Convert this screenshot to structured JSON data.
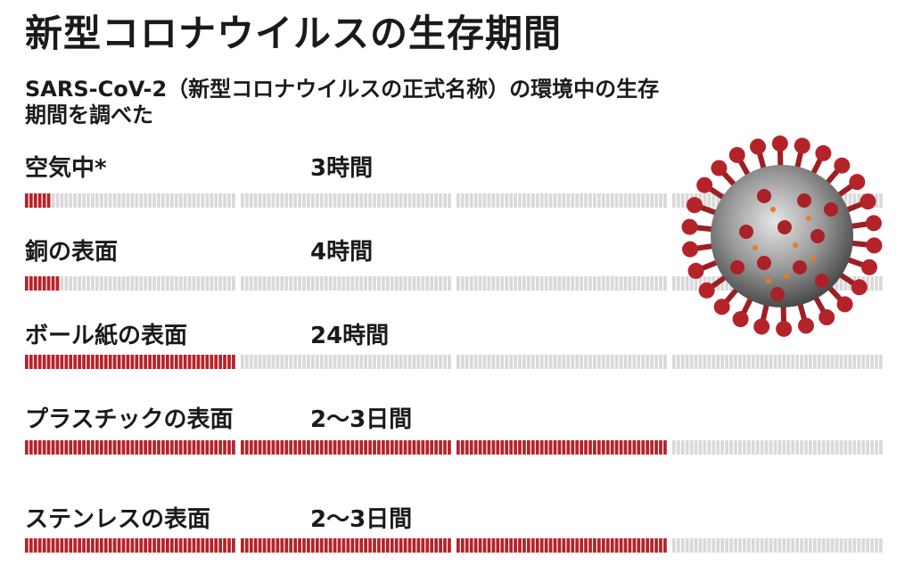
{
  "title": "新型コロナウイルスの生存期間",
  "subtitle": "SARS-CoV-2（新型コロナウイルスの正式名称）の環境中の生存期間を調べた",
  "colors": {
    "filled": "#b5232a",
    "empty": "#d9d9d9",
    "text": "#1a1a1a"
  },
  "icons": [
    "coronavirus-illustration"
  ],
  "chart_data": {
    "type": "bar",
    "unit": "hours",
    "max_hours": 96,
    "hours_per_block": 0.5,
    "blocks_per_group": 48,
    "groups": 4,
    "categories": [
      "空気中*",
      "銅の表面",
      "ボール紙の表面",
      "プラスチックの表面",
      "ステンレスの表面"
    ],
    "value_labels": [
      "3時間",
      "4時間",
      "24時間",
      "2〜3日間",
      "2〜3日間"
    ],
    "values": [
      3,
      4,
      24,
      72,
      72
    ]
  }
}
